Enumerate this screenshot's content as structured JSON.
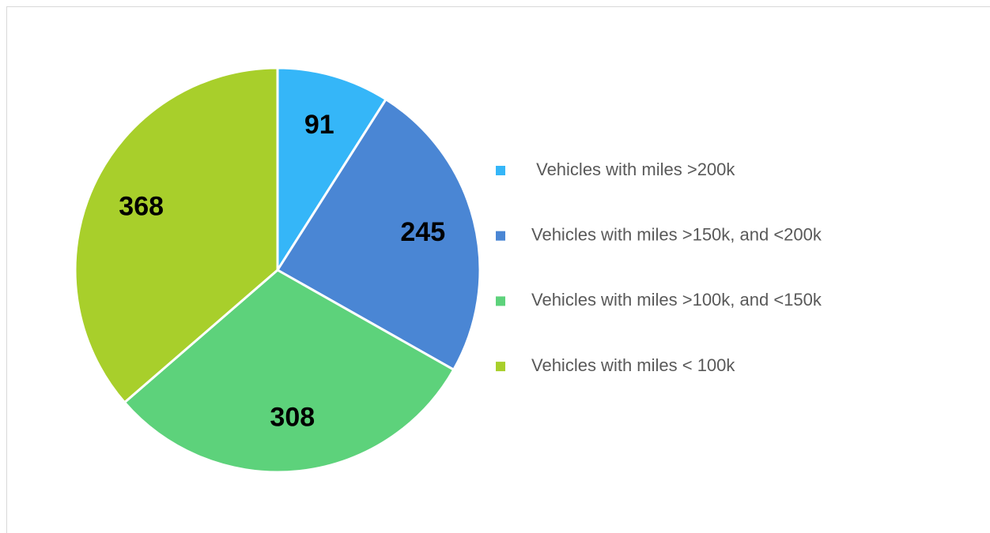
{
  "chart_data": {
    "type": "pie",
    "categories": [
      " Vehicles with miles >200k",
      "Vehicles with miles >150k, and <200k",
      "Vehicles with miles >100k, and <150k",
      "Vehicles with miles < 100k"
    ],
    "values": [
      91,
      245,
      308,
      368
    ],
    "colors": [
      "#35b6f8",
      "#4a86d4",
      "#5dd27b",
      "#a8cf2b"
    ],
    "legend": "right"
  }
}
